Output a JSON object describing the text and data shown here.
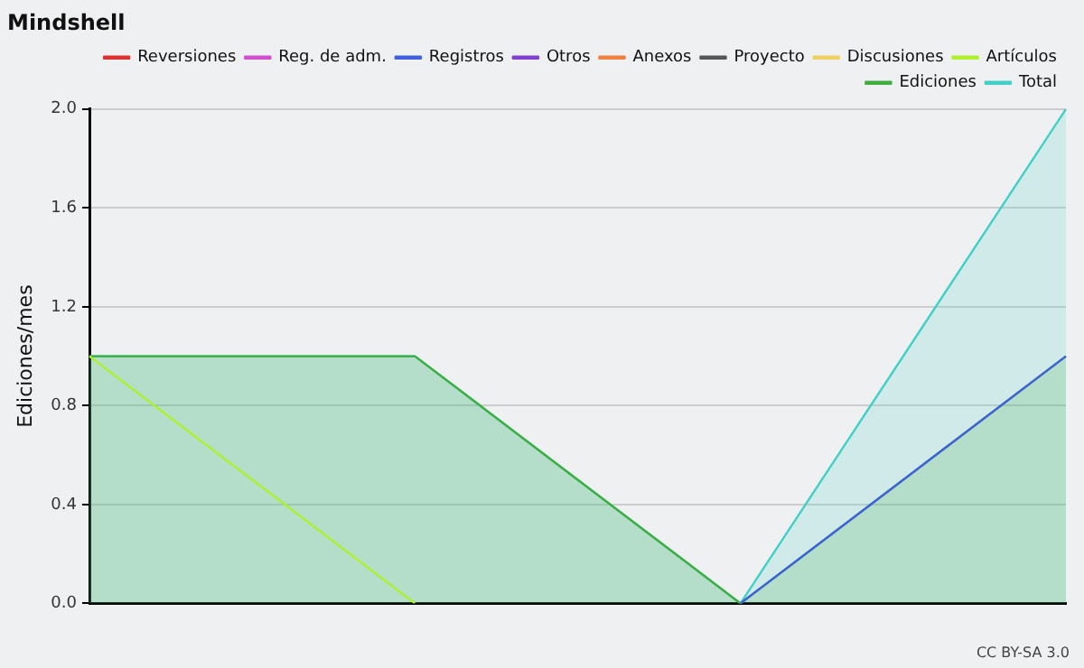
{
  "chart_data": {
    "type": "line",
    "title": "Mindshell",
    "ylabel": "Ediciones/mes",
    "categories": [
      null,
      null,
      null,
      null
    ],
    "series": [
      {
        "name": "Total",
        "type": "area",
        "color": "#40d0c8",
        "values": [
          1,
          1,
          0,
          2
        ]
      },
      {
        "name": "Ediciones",
        "type": "area",
        "color": "#3fae3f",
        "values": [
          1,
          1,
          0,
          1
        ]
      },
      {
        "name": "Artículos",
        "color": "#aef02a",
        "values": [
          1,
          0,
          null,
          null
        ]
      },
      {
        "name": "Discusiones",
        "color": "#f0d060",
        "values": [
          null,
          null,
          null,
          null
        ]
      },
      {
        "name": "Proyecto",
        "color": "#555555",
        "values": [
          null,
          null,
          null,
          null
        ]
      },
      {
        "name": "Anexos",
        "color": "#f08040",
        "values": [
          null,
          null,
          null,
          null
        ]
      },
      {
        "name": "Otros",
        "color": "#8040d0",
        "values": [
          null,
          null,
          null,
          null
        ]
      },
      {
        "name": "Registros",
        "color": "#4060e0",
        "values": [
          null,
          null,
          0,
          1
        ]
      },
      {
        "name": "Reg. de adm.",
        "color": "#d050d0",
        "values": [
          null,
          null,
          null,
          null
        ]
      },
      {
        "name": "Reversiones",
        "color": "#e03030",
        "values": [
          null,
          null,
          null,
          null
        ]
      }
    ],
    "ylim": [
      0,
      2
    ],
    "yticks": [
      {
        "value": 0,
        "label": "0.0"
      },
      {
        "value": 0.4,
        "label": "0.4"
      },
      {
        "value": 0.8,
        "label": "0.8"
      },
      {
        "value": 1.2,
        "label": "1.2"
      },
      {
        "value": 1.6,
        "label": "1.6"
      },
      {
        "value": 2,
        "label": "2.0"
      }
    ],
    "grid": "y",
    "legend": "top right",
    "marker": "none",
    "line_style": "solid",
    "annotations": [
      "CC BY-SA 3.0"
    ]
  }
}
